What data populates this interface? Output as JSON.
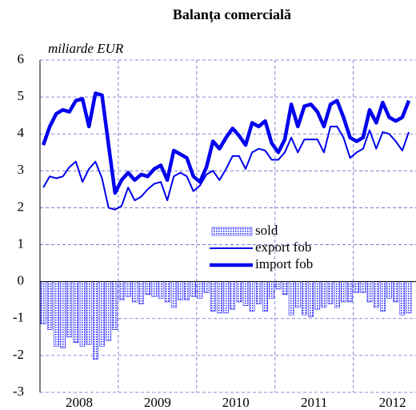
{
  "chart_data": {
    "type": "bar-line",
    "title": "Balanța comercială",
    "ylabel": "miliarde EUR",
    "x": [
      2008.042,
      2008.125,
      2008.208,
      2008.292,
      2008.375,
      2008.458,
      2008.542,
      2008.625,
      2008.708,
      2008.792,
      2008.875,
      2008.958,
      2009.042,
      2009.125,
      2009.208,
      2009.292,
      2009.375,
      2009.458,
      2009.542,
      2009.625,
      2009.708,
      2009.792,
      2009.875,
      2009.958,
      2010.042,
      2010.125,
      2010.208,
      2010.292,
      2010.375,
      2010.458,
      2010.542,
      2010.625,
      2010.708,
      2010.792,
      2010.875,
      2010.958,
      2011.042,
      2011.125,
      2011.208,
      2011.292,
      2011.375,
      2011.458,
      2011.542,
      2011.625,
      2011.708,
      2011.792,
      2011.875,
      2011.958,
      2012.042,
      2012.125,
      2012.208,
      2012.292,
      2012.375,
      2012.458,
      2012.542,
      2012.625,
      2012.708
    ],
    "series": [
      {
        "name": "sold",
        "kind": "bar",
        "color": "#1a1aff",
        "values": [
          -1.15,
          -1.3,
          -1.75,
          -1.8,
          -1.5,
          -1.65,
          -1.75,
          -1.7,
          -2.1,
          -1.75,
          -1.6,
          -1.3,
          -0.5,
          -0.4,
          -0.55,
          -0.6,
          -0.35,
          -0.4,
          -0.45,
          -0.55,
          -0.7,
          -0.5,
          -0.5,
          -0.4,
          -0.45,
          -0.3,
          -0.8,
          -0.85,
          -0.85,
          -0.75,
          -0.55,
          -0.65,
          -0.8,
          -0.6,
          -0.8,
          -0.45,
          -0.2,
          -0.35,
          -0.9,
          -0.7,
          -0.9,
          -0.95,
          -0.75,
          -0.7,
          -0.6,
          -0.7,
          -0.55,
          -0.55,
          -0.3,
          -0.3,
          -0.55,
          -0.7,
          -0.8,
          -0.45,
          -0.55,
          -0.9,
          -0.85
        ]
      },
      {
        "name": "export fob",
        "kind": "line",
        "width": 2,
        "color": "#0000ee",
        "values": [
          2.55,
          2.85,
          2.8,
          2.85,
          3.1,
          3.25,
          2.7,
          3.05,
          3.25,
          2.8,
          2.0,
          1.95,
          2.05,
          2.55,
          2.2,
          2.3,
          2.5,
          2.65,
          2.7,
          2.2,
          2.85,
          2.95,
          2.85,
          2.45,
          2.6,
          2.9,
          3.0,
          2.75,
          3.05,
          3.4,
          3.4,
          3.05,
          3.5,
          3.6,
          3.55,
          3.3,
          3.3,
          3.5,
          3.9,
          3.5,
          3.85,
          3.85,
          3.85,
          3.5,
          4.2,
          4.2,
          3.9,
          3.35,
          3.5,
          3.6,
          4.1,
          3.6,
          4.05,
          4.0,
          3.8,
          3.55,
          4.05
        ]
      },
      {
        "name": "import fob",
        "kind": "line",
        "width": 4.5,
        "color": "#0000ee",
        "values": [
          3.7,
          4.2,
          4.55,
          4.65,
          4.6,
          4.9,
          4.95,
          4.2,
          5.1,
          5.05,
          3.7,
          2.4,
          2.75,
          2.95,
          2.75,
          2.9,
          2.85,
          3.05,
          3.15,
          2.75,
          3.55,
          3.45,
          3.35,
          2.85,
          2.7,
          3.1,
          3.8,
          3.6,
          3.9,
          4.15,
          3.95,
          3.7,
          4.3,
          4.2,
          4.35,
          3.75,
          3.5,
          3.85,
          4.8,
          4.2,
          4.75,
          4.8,
          4.6,
          4.2,
          4.8,
          4.9,
          4.45,
          3.9,
          3.8,
          3.9,
          4.65,
          4.3,
          4.85,
          4.45,
          4.35,
          4.45,
          4.9
        ]
      }
    ],
    "xlim": [
      2008,
      2012.8
    ],
    "xticks": [
      {
        "value": 2008.5,
        "label": "2008"
      },
      {
        "value": 2009.5,
        "label": "2009"
      },
      {
        "value": 2010.5,
        "label": "2010"
      },
      {
        "value": 2011.5,
        "label": "2011"
      },
      {
        "value": 2012.5,
        "label": "2012"
      }
    ],
    "xgrid": [
      2009,
      2010,
      2011,
      2012
    ],
    "ylim": [
      -3,
      6
    ],
    "yticks": [
      -3,
      -2,
      -1,
      0,
      1,
      2,
      3,
      4,
      5,
      6
    ],
    "grid": true
  }
}
